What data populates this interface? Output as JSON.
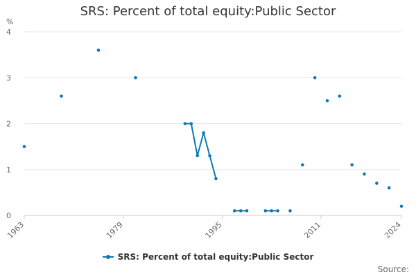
{
  "chart_data": {
    "type": "line",
    "title": "SRS: Percent of total equity:Public Sector",
    "ylabel": "%",
    "xlabel": "",
    "xlim": [
      1963,
      2024
    ],
    "ylim": [
      0,
      4
    ],
    "x_ticks": [
      1963,
      1979,
      1995,
      2011,
      2024
    ],
    "y_ticks": [
      0,
      1,
      2,
      3,
      4
    ],
    "grid": "horizontal",
    "legend_position": "bottom",
    "series": [
      {
        "name": "SRS: Percent of total equity:Public Sector",
        "color": "#0c78b8",
        "points": [
          {
            "x": 1963,
            "y": 1.5
          },
          {
            "x": 1969,
            "y": 2.6
          },
          {
            "x": 1975,
            "y": 3.6
          },
          {
            "x": 1981,
            "y": 3.0
          },
          {
            "x": 1989,
            "y": 2.0
          },
          {
            "x": 1990,
            "y": 2.0
          },
          {
            "x": 1991,
            "y": 1.3
          },
          {
            "x": 1992,
            "y": 1.8
          },
          {
            "x": 1993,
            "y": 1.3
          },
          {
            "x": 1994,
            "y": 0.8
          },
          {
            "x": 1997,
            "y": 0.1
          },
          {
            "x": 1998,
            "y": 0.1
          },
          {
            "x": 1999,
            "y": 0.1
          },
          {
            "x": 2002,
            "y": 0.1
          },
          {
            "x": 2003,
            "y": 0.1
          },
          {
            "x": 2004,
            "y": 0.1
          },
          {
            "x": 2006,
            "y": 0.1
          },
          {
            "x": 2008,
            "y": 1.1
          },
          {
            "x": 2010,
            "y": 3.0
          },
          {
            "x": 2012,
            "y": 2.5
          },
          {
            "x": 2014,
            "y": 2.6
          },
          {
            "x": 2016,
            "y": 1.1
          },
          {
            "x": 2018,
            "y": 0.9
          },
          {
            "x": 2020,
            "y": 0.7
          },
          {
            "x": 2022,
            "y": 0.6
          },
          {
            "x": 2024,
            "y": 0.2
          }
        ]
      }
    ]
  },
  "legend": {
    "label": "SRS: Percent of total equity:Public Sector"
  },
  "footer": {
    "source_label": "Source:"
  }
}
